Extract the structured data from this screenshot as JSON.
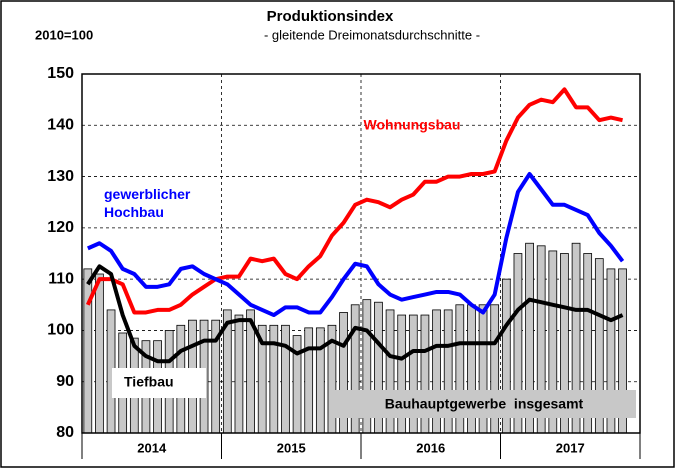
{
  "chart_data": {
    "type": "bar_line",
    "title": "Produktionsindex",
    "subtitle": "- gleitende Dreimonatsdurchschnitte -",
    "base_note": "2010=100",
    "xlim": [
      0,
      48
    ],
    "xticks": [
      {
        "value": 6,
        "label": "2014"
      },
      {
        "value": 18,
        "label": "2015"
      },
      {
        "value": 30,
        "label": "2016"
      },
      {
        "value": 42,
        "label": "2017"
      }
    ],
    "xgrid": [
      12,
      24,
      36
    ],
    "x": [
      0.5,
      1.5,
      2.5,
      3.5,
      4.5,
      5.5,
      6.5,
      7.5,
      8.5,
      9.5,
      10.5,
      11.5,
      12.5,
      13.5,
      14.5,
      15.5,
      16.5,
      17.5,
      18.5,
      19.5,
      20.5,
      21.5,
      22.5,
      23.5,
      24.5,
      25.5,
      26.5,
      27.5,
      28.5,
      29.5,
      30.5,
      31.5,
      32.5,
      33.5,
      34.5,
      35.5,
      36.5,
      37.5,
      38.5,
      39.5,
      40.5,
      41.5,
      42.5,
      43.5,
      44.5,
      45.5,
      46.5
    ],
    "ylim": [
      80,
      150
    ],
    "yticks": [
      80,
      90,
      100,
      110,
      120,
      130,
      140,
      150
    ],
    "grid": true,
    "series": [
      {
        "name": "Bauhauptgewerbe  insgesamt",
        "kind": "bar",
        "color": "#c8c8c8",
        "values": [
          112,
          111,
          104,
          99.5,
          98.5,
          98,
          98,
          100,
          101,
          102,
          102,
          102,
          104,
          103,
          104,
          101,
          101,
          101,
          99,
          100.5,
          100.5,
          101,
          103.5,
          105,
          106,
          105.5,
          104,
          103,
          103,
          103,
          104,
          104,
          105,
          105,
          105,
          105,
          110,
          115,
          117,
          116.5,
          115.5,
          115,
          117,
          115,
          114,
          112,
          112
        ]
      },
      {
        "name": "Wohnungsbau",
        "kind": "line",
        "color": "#ff0000",
        "values": [
          105,
          110,
          110,
          109,
          103.5,
          103.5,
          104,
          104,
          105,
          107,
          108.5,
          110,
          110.5,
          110.5,
          114,
          113.5,
          114,
          111,
          110,
          112.5,
          114.5,
          118.5,
          121,
          124.5,
          125.5,
          125,
          124,
          125.5,
          126.5,
          129,
          129,
          130,
          130,
          130.5,
          130.5,
          131,
          137,
          141.5,
          144,
          145,
          144.5,
          147,
          143.5,
          143.5,
          141,
          141.5,
          141
        ]
      },
      {
        "name": "gewerblicher Hochbau",
        "kind": "line",
        "color": "#0000ff",
        "values": [
          116,
          117,
          115.5,
          112,
          111,
          108.5,
          108.5,
          109,
          112,
          112.5,
          111,
          110,
          109,
          107,
          105,
          104,
          103,
          104.5,
          104.5,
          103.5,
          103.5,
          106.5,
          110,
          113,
          112.5,
          109,
          107,
          106,
          106.5,
          107,
          107.5,
          107.5,
          107,
          105,
          103.5,
          107,
          118,
          127,
          130.5,
          127.5,
          124.5,
          124.5,
          123.5,
          122.5,
          119,
          116.5,
          113.5
        ]
      },
      {
        "name": "Tiefbau",
        "kind": "line",
        "color": "#000000",
        "values": [
          109,
          112.5,
          111,
          103,
          97,
          95,
          94,
          94,
          96,
          97,
          98,
          98,
          101.5,
          102,
          102,
          97.5,
          97.5,
          97,
          95.5,
          96.5,
          96.5,
          98,
          97,
          100.5,
          100,
          97.5,
          95,
          94.5,
          96,
          96,
          97,
          97,
          97.5,
          97.5,
          97.5,
          97.5,
          101,
          104,
          106,
          105.5,
          105,
          104.5,
          104,
          104,
          103,
          102,
          103
        ]
      }
    ]
  }
}
